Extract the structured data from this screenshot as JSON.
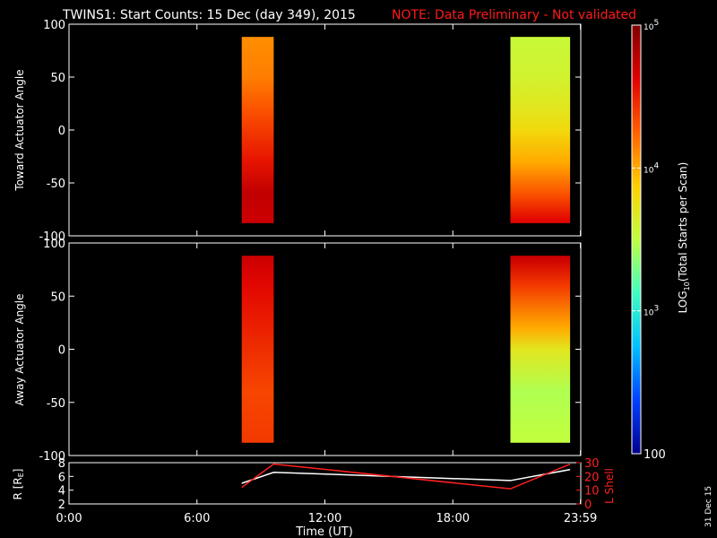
{
  "title": {
    "main": "TWINS1: Start Counts: 15 Dec (day 349), 2015",
    "note": "NOTE: Data Preliminary - Not validated"
  },
  "stamp": "31 Dec 15",
  "colorbar": {
    "label": "LOG10(Total Starts per Scan)",
    "label_prefix": "LOG",
    "label_sub": "10",
    "label_suffix": "(Total Starts per Scan)",
    "ticks": [
      {
        "value": 100,
        "text": "100"
      },
      {
        "value": 1000,
        "base": "10",
        "exp": "3"
      },
      {
        "value": 10000,
        "base": "10",
        "exp": "4"
      },
      {
        "value": 100000,
        "base": "10",
        "exp": "5"
      }
    ],
    "scale": "log",
    "range": [
      100,
      100000
    ],
    "colors": [
      "#00008f",
      "#0040ff",
      "#00c0ff",
      "#40ffc0",
      "#c0ff40",
      "#ffd000",
      "#ff6000",
      "#e00000",
      "#800000"
    ]
  },
  "chart_data": [
    {
      "type": "heatmap",
      "panel": "toward",
      "ylabel": "Toward Actuator Angle",
      "ylim": [
        -100,
        100
      ],
      "yticks": [
        100,
        50,
        0,
        -50,
        -100
      ],
      "xlim": [
        0,
        24
      ],
      "grid": false,
      "blocks": [
        {
          "t_start": 8.1,
          "t_end": 9.6,
          "angle_min": -88,
          "angle_max": 88,
          "log_counts": [
            {
              "angle": 85,
              "log": 4.1
            },
            {
              "angle": 50,
              "log": 4.15
            },
            {
              "angle": 20,
              "log": 4.3
            },
            {
              "angle": 0,
              "log": 4.4
            },
            {
              "angle": -30,
              "log": 4.55
            },
            {
              "angle": -60,
              "log": 4.75
            },
            {
              "angle": -85,
              "log": 4.7
            }
          ]
        },
        {
          "t_start": 20.7,
          "t_end": 23.5,
          "angle_min": -88,
          "angle_max": 88,
          "log_counts": [
            {
              "angle": 85,
              "log": 3.55
            },
            {
              "angle": 50,
              "log": 3.6
            },
            {
              "angle": 20,
              "log": 3.7
            },
            {
              "angle": 0,
              "log": 3.8
            },
            {
              "angle": -30,
              "log": 4.0
            },
            {
              "angle": -60,
              "log": 4.3
            },
            {
              "angle": -85,
              "log": 4.6
            }
          ]
        }
      ]
    },
    {
      "type": "heatmap",
      "panel": "away",
      "ylabel": "Away Actuator Angle",
      "ylim": [
        -100,
        100
      ],
      "yticks": [
        100,
        50,
        0,
        -50,
        -100
      ],
      "xlim": [
        0,
        24
      ],
      "grid": false,
      "blocks": [
        {
          "t_start": 8.1,
          "t_end": 9.6,
          "angle_min": -88,
          "angle_max": 88,
          "log_counts": [
            {
              "angle": 85,
              "log": 4.7
            },
            {
              "angle": 60,
              "log": 4.6
            },
            {
              "angle": 20,
              "log": 4.5
            },
            {
              "angle": 0,
              "log": 4.45
            },
            {
              "angle": -40,
              "log": 4.35
            },
            {
              "angle": -85,
              "log": 4.4
            }
          ]
        },
        {
          "t_start": 20.7,
          "t_end": 23.5,
          "angle_min": -88,
          "angle_max": 88,
          "log_counts": [
            {
              "angle": 85,
              "log": 4.7
            },
            {
              "angle": 60,
              "log": 4.4
            },
            {
              "angle": 20,
              "log": 4.0
            },
            {
              "angle": 0,
              "log": 3.7
            },
            {
              "angle": -40,
              "log": 3.45
            },
            {
              "angle": -80,
              "log": 3.5
            }
          ]
        }
      ]
    },
    {
      "type": "line",
      "panel": "orbit",
      "ylabel": "R [RE]",
      "ylabel_main": "R [R",
      "ylabel_sub": "E",
      "ylabel_end": "]",
      "ylim": [
        2,
        8
      ],
      "yticks": [
        2,
        4,
        6,
        8
      ],
      "y2label": "L Shell",
      "y2lim": [
        0,
        30
      ],
      "y2ticks": [
        0,
        10,
        20,
        30
      ],
      "xlim": [
        0,
        24
      ],
      "series": [
        {
          "axis": "left",
          "color": "#ffffff",
          "x": [
            8.1,
            9.6,
            20.7,
            23.5
          ],
          "y": [
            5.0,
            6.6,
            5.4,
            7.0
          ]
        },
        {
          "axis": "right",
          "color": "#ff2020",
          "x": [
            8.1,
            9.6,
            20.7,
            23.5
          ],
          "y": [
            12,
            29,
            11,
            29
          ]
        }
      ]
    }
  ],
  "xaxis": {
    "label": "Time (UT)",
    "ticks": [
      {
        "value": 0,
        "text": "0:00"
      },
      {
        "value": 6,
        "text": "6:00"
      },
      {
        "value": 12,
        "text": "12:00"
      },
      {
        "value": 18,
        "text": "18:00"
      },
      {
        "value": 23.983,
        "text": "23:59"
      }
    ]
  }
}
